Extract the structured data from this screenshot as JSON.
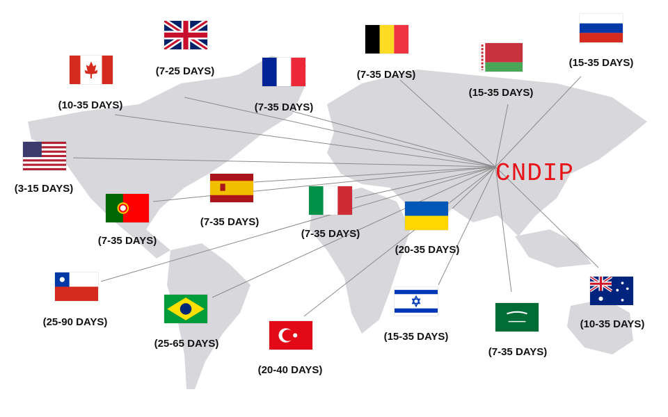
{
  "brand": {
    "text": "CNDIP",
    "color": "#e8141c"
  },
  "colors": {
    "land": "#d8d8dc",
    "lines": "#8a8a8a"
  },
  "destinations": [
    {
      "flag": "uk-flag",
      "label": "(7-25 DAYS)"
    },
    {
      "flag": "canada-flag",
      "label": "(10-35 DAYS)"
    },
    {
      "flag": "france-flag",
      "label": "(7-35 DAYS)"
    },
    {
      "flag": "belgium-flag",
      "label": "(7-35 DAYS)"
    },
    {
      "flag": "belarus-flag",
      "label": "(15-35 DAYS)"
    },
    {
      "flag": "russia-flag",
      "label": "(15-35 DAYS)"
    },
    {
      "flag": "usa-flag",
      "label": "(3-15 DAYS)"
    },
    {
      "flag": "spain-flag",
      "label": "(7-35 DAYS)"
    },
    {
      "flag": "portugal-flag",
      "label": "(7-35 DAYS)"
    },
    {
      "flag": "italy-flag",
      "label": "(7-35 DAYS)"
    },
    {
      "flag": "ukraine-flag",
      "label": "(20-35 DAYS)"
    },
    {
      "flag": "chile-flag",
      "label": "(25-90 DAYS)"
    },
    {
      "flag": "brazil-flag",
      "label": "(25-65 DAYS)"
    },
    {
      "flag": "turkey-flag",
      "label": "(20-40 DAYS)"
    },
    {
      "flag": "israel-flag",
      "label": "(15-35 DAYS)"
    },
    {
      "flag": "saudi-arabia-flag",
      "label": "(7-35 DAYS)"
    },
    {
      "flag": "australia-flag",
      "label": "(10-35 DAYS)"
    }
  ]
}
